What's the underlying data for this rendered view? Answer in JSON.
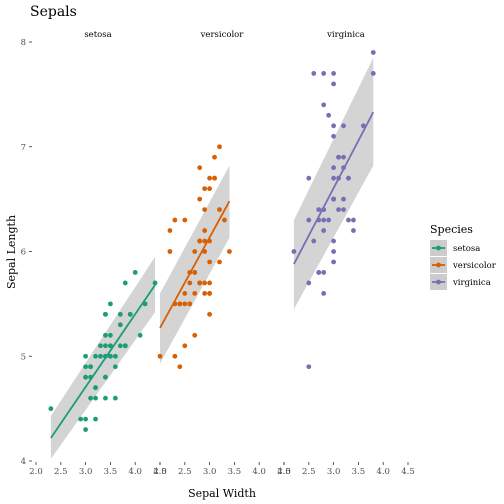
{
  "chart_data": {
    "type": "scatter",
    "title": "Sepals",
    "xlabel": "Sepal Width",
    "ylabel": "Sepal Length",
    "xlim": [
      2.0,
      4.5
    ],
    "ylim": [
      4.0,
      8.0
    ],
    "xticks": [
      2.0,
      2.5,
      3.0,
      3.5,
      4.0,
      4.5
    ],
    "yticks": [
      4,
      5,
      6,
      7,
      8
    ],
    "xtick_labels": [
      "2.0",
      "2.5",
      "3.0",
      "3.5",
      "4.0",
      "4.5"
    ],
    "ytick_labels": [
      "4",
      "5",
      "6",
      "7",
      "8"
    ],
    "grid": false,
    "legend": {
      "title": "Species",
      "position": "right"
    },
    "colors": {
      "setosa": "#1b9e77",
      "versicolor": "#d95f02",
      "virginica": "#7570b3",
      "band": "#cccccc"
    },
    "panels": [
      {
        "name": "setosa",
        "color": "#1b9e77",
        "fit": {
          "x": [
            2.3,
            4.4
          ],
          "y": [
            4.22,
            5.68
          ]
        },
        "band": {
          "x": [
            2.3,
            4.4
          ],
          "upper": [
            4.43,
            5.95
          ],
          "lower": [
            4.02,
            5.42
          ]
        },
        "points": [
          [
            3.5,
            5.1
          ],
          [
            3.0,
            4.9
          ],
          [
            3.2,
            4.7
          ],
          [
            3.1,
            4.6
          ],
          [
            3.6,
            5.0
          ],
          [
            3.9,
            5.4
          ],
          [
            3.4,
            4.6
          ],
          [
            3.4,
            5.0
          ],
          [
            2.9,
            4.4
          ],
          [
            3.1,
            4.9
          ],
          [
            3.7,
            5.4
          ],
          [
            3.4,
            4.8
          ],
          [
            3.0,
            4.8
          ],
          [
            3.0,
            4.3
          ],
          [
            4.0,
            5.8
          ],
          [
            4.4,
            5.7
          ],
          [
            3.9,
            5.4
          ],
          [
            3.5,
            5.1
          ],
          [
            3.8,
            5.7
          ],
          [
            3.8,
            5.1
          ],
          [
            3.4,
            5.4
          ],
          [
            3.7,
            5.1
          ],
          [
            3.6,
            4.6
          ],
          [
            3.3,
            5.1
          ],
          [
            3.4,
            4.8
          ],
          [
            3.0,
            5.0
          ],
          [
            3.4,
            5.0
          ],
          [
            3.5,
            5.2
          ],
          [
            3.4,
            5.2
          ],
          [
            3.2,
            4.7
          ],
          [
            3.1,
            4.8
          ],
          [
            3.4,
            5.4
          ],
          [
            4.1,
            5.2
          ],
          [
            4.2,
            5.5
          ],
          [
            3.1,
            4.9
          ],
          [
            3.2,
            5.0
          ],
          [
            3.5,
            5.5
          ],
          [
            3.6,
            4.9
          ],
          [
            3.0,
            4.4
          ],
          [
            3.4,
            5.1
          ],
          [
            3.5,
            5.0
          ],
          [
            2.3,
            4.5
          ],
          [
            3.2,
            4.4
          ],
          [
            3.5,
            5.0
          ],
          [
            3.8,
            5.1
          ],
          [
            3.0,
            4.8
          ],
          [
            3.8,
            5.1
          ],
          [
            3.2,
            4.6
          ],
          [
            3.7,
            5.3
          ],
          [
            3.3,
            5.0
          ]
        ]
      },
      {
        "name": "versicolor",
        "color": "#d95f02",
        "fit": {
          "x": [
            2.0,
            3.4
          ],
          "y": [
            5.27,
            6.48
          ]
        },
        "band": {
          "x": [
            2.0,
            3.4
          ],
          "upper": [
            5.6,
            6.82
          ],
          "lower": [
            4.93,
            6.13
          ]
        },
        "points": [
          [
            3.2,
            7.0
          ],
          [
            3.2,
            6.4
          ],
          [
            3.1,
            6.9
          ],
          [
            2.3,
            5.5
          ],
          [
            2.8,
            6.5
          ],
          [
            2.8,
            5.7
          ],
          [
            3.3,
            6.3
          ],
          [
            2.4,
            4.9
          ],
          [
            2.9,
            6.6
          ],
          [
            2.7,
            5.2
          ],
          [
            2.0,
            5.0
          ],
          [
            3.0,
            5.9
          ],
          [
            2.2,
            6.0
          ],
          [
            2.9,
            6.1
          ],
          [
            2.9,
            5.6
          ],
          [
            3.1,
            6.7
          ],
          [
            3.0,
            5.6
          ],
          [
            2.7,
            5.8
          ],
          [
            2.2,
            6.2
          ],
          [
            2.5,
            5.6
          ],
          [
            3.2,
            5.9
          ],
          [
            2.8,
            6.1
          ],
          [
            2.5,
            6.3
          ],
          [
            2.8,
            6.1
          ],
          [
            2.9,
            6.4
          ],
          [
            3.0,
            6.6
          ],
          [
            2.8,
            6.8
          ],
          [
            3.0,
            6.7
          ],
          [
            2.9,
            6.0
          ],
          [
            2.6,
            5.7
          ],
          [
            2.4,
            5.5
          ],
          [
            2.4,
            5.5
          ],
          [
            2.7,
            5.8
          ],
          [
            2.7,
            6.0
          ],
          [
            3.0,
            5.4
          ],
          [
            3.4,
            6.0
          ],
          [
            3.1,
            6.7
          ],
          [
            2.3,
            6.3
          ],
          [
            3.0,
            5.6
          ],
          [
            2.5,
            5.5
          ],
          [
            2.6,
            5.5
          ],
          [
            3.0,
            6.1
          ],
          [
            2.6,
            5.8
          ],
          [
            2.3,
            5.0
          ],
          [
            2.7,
            5.6
          ],
          [
            3.0,
            5.7
          ],
          [
            2.9,
            5.7
          ],
          [
            2.9,
            6.2
          ],
          [
            2.5,
            5.1
          ],
          [
            2.8,
            5.7
          ]
        ]
      },
      {
        "name": "virginica",
        "color": "#7570b3",
        "fit": {
          "x": [
            2.2,
            3.8
          ],
          "y": [
            5.88,
            7.33
          ]
        },
        "band": {
          "x": [
            2.2,
            3.8
          ],
          "upper": [
            6.3,
            7.85
          ],
          "lower": [
            5.45,
            6.82
          ]
        },
        "points": [
          [
            3.3,
            6.3
          ],
          [
            2.7,
            5.8
          ],
          [
            3.0,
            7.1
          ],
          [
            2.9,
            6.3
          ],
          [
            3.0,
            6.5
          ],
          [
            3.0,
            7.6
          ],
          [
            2.5,
            4.9
          ],
          [
            2.9,
            7.3
          ],
          [
            2.5,
            6.7
          ],
          [
            3.6,
            7.2
          ],
          [
            3.2,
            6.5
          ],
          [
            2.7,
            6.4
          ],
          [
            3.0,
            6.8
          ],
          [
            2.5,
            5.7
          ],
          [
            2.8,
            5.8
          ],
          [
            3.2,
            6.4
          ],
          [
            3.0,
            6.5
          ],
          [
            3.8,
            7.7
          ],
          [
            2.6,
            7.7
          ],
          [
            2.2,
            6.0
          ],
          [
            3.2,
            6.9
          ],
          [
            2.8,
            5.6
          ],
          [
            2.8,
            7.7
          ],
          [
            2.7,
            6.3
          ],
          [
            3.3,
            6.7
          ],
          [
            3.2,
            7.2
          ],
          [
            2.8,
            6.2
          ],
          [
            3.0,
            6.1
          ],
          [
            2.8,
            6.4
          ],
          [
            3.0,
            7.2
          ],
          [
            2.8,
            7.4
          ],
          [
            3.8,
            7.9
          ],
          [
            2.8,
            6.4
          ],
          [
            2.8,
            6.3
          ],
          [
            2.6,
            6.1
          ],
          [
            3.0,
            7.7
          ],
          [
            3.4,
            6.3
          ],
          [
            3.1,
            6.4
          ],
          [
            3.0,
            6.0
          ],
          [
            3.1,
            6.9
          ],
          [
            3.1,
            6.7
          ],
          [
            3.1,
            6.9
          ],
          [
            2.7,
            5.8
          ],
          [
            3.2,
            6.8
          ],
          [
            3.3,
            6.7
          ],
          [
            3.0,
            6.7
          ],
          [
            2.5,
            6.3
          ],
          [
            3.0,
            6.5
          ],
          [
            3.4,
            6.2
          ],
          [
            3.0,
            5.9
          ]
        ]
      }
    ]
  }
}
